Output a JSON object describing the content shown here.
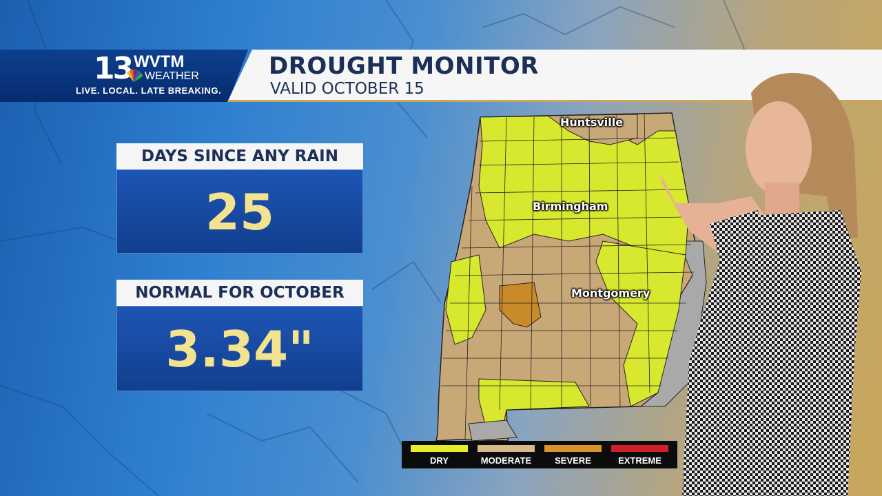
{
  "station": {
    "number": "13",
    "call_sign": "WVTM",
    "brand": "WEATHER",
    "tagline": "LIVE. LOCAL. LATE BREAKING.",
    "icon": "nbc-peacock-icon"
  },
  "header": {
    "title": "DROUGHT MONITOR",
    "subtitle": "VALID OCTOBER 15"
  },
  "stats": [
    {
      "label": "DAYS SINCE ANY RAIN",
      "value": "25"
    },
    {
      "label": "NORMAL FOR OCTOBER",
      "value": "3.34\""
    }
  ],
  "map": {
    "region": "Alabama",
    "cities": [
      "Huntsville",
      "Birmingham",
      "Montgomery"
    ]
  },
  "legend": [
    {
      "label": "DRY",
      "color": "#e5ec2a"
    },
    {
      "label": "MODERATE",
      "color": "#d8b98a"
    },
    {
      "label": "SEVERE",
      "color": "#d9932a"
    },
    {
      "label": "EXTREME",
      "color": "#d0202a"
    }
  ],
  "colors": {
    "dry": "#d8e82e",
    "moderate": "#c9a878",
    "severe": "#c98a2a",
    "none": "#a9a9a9",
    "brand_blue": "#0d3f8f",
    "value_yellow": "#f3e38f"
  }
}
